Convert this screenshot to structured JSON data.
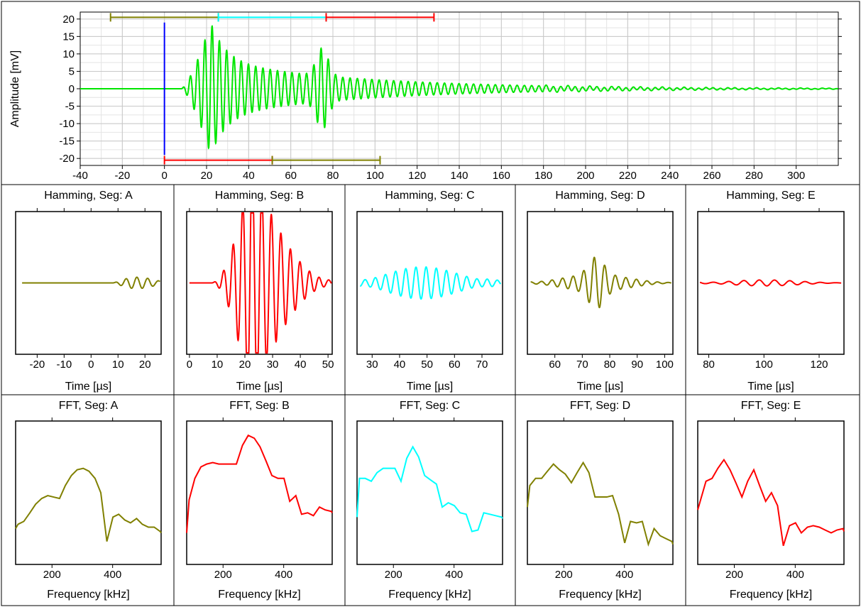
{
  "colors": {
    "signal": "#00e600",
    "olive": "#808000",
    "red": "#ff0000",
    "cyan": "#00ffff",
    "blue": "#0000ff",
    "frame": "#000000",
    "grid": "#c8c8c8"
  },
  "chart_data": [
    {
      "id": "main",
      "type": "line",
      "title": "",
      "xlabel": "",
      "ylabel": "Amplitude [mV]",
      "xlim": [
        -40,
        320
      ],
      "ylim": [
        -22,
        22
      ],
      "grid": true,
      "x_ticks": [
        -40,
        -20,
        0,
        20,
        40,
        60,
        80,
        100,
        120,
        140,
        160,
        180,
        200,
        220,
        240,
        260,
        280,
        300
      ],
      "y_ticks": [
        20,
        15,
        10,
        5,
        0,
        -5,
        -10,
        -15,
        -20
      ],
      "series": [
        {
          "color": "signal",
          "waveform": {
            "onset_us": 8,
            "envelope_peak_us": 22,
            "peak_amplitude_mV": 19,
            "carrier_freq_khz": 290,
            "extra_burst_us": 75,
            "extra_burst_mV": 8
          }
        }
      ],
      "markers": {
        "trigger": {
          "x": 0,
          "y_top": 19,
          "y_bottom": -19,
          "color": "blue"
        },
        "segments": [
          {
            "name": "A",
            "x_start": -25.6,
            "x_end": 25.6,
            "position": "top",
            "color": "olive"
          },
          {
            "name": "B",
            "x_start": 0,
            "x_end": 51.2,
            "position": "bottom",
            "color": "red"
          },
          {
            "name": "C",
            "x_start": 25.6,
            "x_end": 76.8,
            "position": "top",
            "color": "cyan"
          },
          {
            "name": "D",
            "x_start": 51.2,
            "x_end": 102.4,
            "position": "bottom",
            "color": "olive"
          },
          {
            "name": "E",
            "x_start": 76.8,
            "x_end": 128,
            "position": "top",
            "color": "red"
          }
        ]
      }
    },
    {
      "id": "ham-a",
      "type": "line",
      "title": "Hamming, Seg: A",
      "xlabel": "Time [µs]",
      "color": "olive",
      "xlim": [
        -28,
        26
      ],
      "x_ticks": [
        -20,
        -10,
        0,
        10,
        20
      ],
      "waveform": {
        "start": -25.6,
        "end": 25.6,
        "onset_us": 7,
        "relative_peak": 0.26,
        "carrier_freq_khz": 250
      }
    },
    {
      "id": "ham-b",
      "type": "line",
      "title": "Hamming, Seg: B",
      "xlabel": "Time [µs]",
      "color": "red",
      "xlim": [
        -1,
        51.5
      ],
      "x_ticks": [
        0,
        10,
        20,
        30,
        40,
        50
      ],
      "waveform": {
        "start": 0,
        "end": 51.2,
        "onset_us": 8,
        "relative_peak": 0.96,
        "carrier_freq_khz": 290
      }
    },
    {
      "id": "ham-c",
      "type": "line",
      "title": "Hamming, Seg: C",
      "xlabel": "Time [µs]",
      "color": "cyan",
      "xlim": [
        24.5,
        77.5
      ],
      "x_ticks": [
        30,
        40,
        50,
        60,
        70
      ],
      "waveform": {
        "start": 25.6,
        "end": 76.8,
        "onset_us": 25.6,
        "relative_peak": 0.42,
        "carrier_freq_khz": 270
      }
    },
    {
      "id": "ham-d",
      "type": "line",
      "title": "Hamming, Seg: D",
      "xlabel": "Time [µs]",
      "color": "olive",
      "xlim": [
        50,
        103
      ],
      "x_ticks": [
        60,
        70,
        80,
        90,
        100
      ],
      "waveform": {
        "start": 51.2,
        "end": 102.4,
        "onset_us": 51.2,
        "relative_peak": 0.33,
        "carrier_freq_khz": 260
      }
    },
    {
      "id": "ham-e",
      "type": "line",
      "title": "Hamming, Seg: E",
      "xlabel": "Time [µs]",
      "color": "red",
      "xlim": [
        76,
        129
      ],
      "x_ticks": [
        80,
        100,
        120
      ],
      "waveform": {
        "start": 76.8,
        "end": 128,
        "onset_us": 76.8,
        "relative_peak": 0.17,
        "carrier_freq_khz": 180
      }
    },
    {
      "id": "fft-a",
      "type": "line",
      "title": "FFT, Seg: A",
      "xlabel": "Frequency [kHz]",
      "color": "olive",
      "xlim": [
        80,
        560
      ],
      "x_ticks": [
        200,
        400
      ],
      "x": [
        68,
        88,
        107,
        127,
        146,
        166,
        186,
        205,
        225,
        244,
        264,
        283,
        303,
        322,
        342,
        361,
        381,
        401,
        420,
        440,
        459,
        479,
        498,
        518,
        537,
        557,
        576
      ],
      "y": [
        0.25,
        0.28,
        0.3,
        0.36,
        0.42,
        0.46,
        0.48,
        0.47,
        0.46,
        0.55,
        0.62,
        0.66,
        0.67,
        0.65,
        0.6,
        0.5,
        0.16,
        0.33,
        0.35,
        0.31,
        0.29,
        0.32,
        0.28,
        0.26,
        0.26,
        0.23,
        0.22
      ]
    },
    {
      "id": "fft-b",
      "type": "line",
      "title": "FFT, Seg: B",
      "xlabel": "Frequency [kHz]",
      "color": "red",
      "xlim": [
        80,
        560
      ],
      "x_ticks": [
        200,
        400
      ],
      "x": [
        68,
        88,
        107,
        127,
        146,
        166,
        186,
        205,
        225,
        244,
        264,
        283,
        303,
        322,
        342,
        361,
        381,
        401,
        420,
        440,
        459,
        479,
        498,
        518,
        537,
        557,
        576
      ],
      "y": [
        0.22,
        0.45,
        0.6,
        0.68,
        0.7,
        0.71,
        0.7,
        0.7,
        0.7,
        0.7,
        0.83,
        0.9,
        0.88,
        0.82,
        0.72,
        0.62,
        0.6,
        0.6,
        0.44,
        0.48,
        0.35,
        0.36,
        0.34,
        0.4,
        0.38,
        0.37,
        0.36
      ]
    },
    {
      "id": "fft-c",
      "type": "line",
      "title": "FFT, Seg: C",
      "xlabel": "Frequency [kHz]",
      "color": "cyan",
      "xlim": [
        80,
        560
      ],
      "x_ticks": [
        200,
        400
      ],
      "x": [
        68,
        88,
        107,
        127,
        146,
        166,
        186,
        205,
        225,
        244,
        264,
        283,
        303,
        322,
        342,
        361,
        381,
        401,
        420,
        440,
        459,
        479,
        498,
        518,
        537,
        557,
        576
      ],
      "y": [
        0.33,
        0.6,
        0.6,
        0.58,
        0.64,
        0.67,
        0.67,
        0.67,
        0.58,
        0.74,
        0.82,
        0.75,
        0.62,
        0.59,
        0.56,
        0.4,
        0.43,
        0.41,
        0.36,
        0.35,
        0.23,
        0.24,
        0.36,
        0.35,
        0.34,
        0.33,
        0.32
      ]
    },
    {
      "id": "fft-d",
      "type": "line",
      "title": "FFT, Seg: D",
      "xlabel": "Frequency [kHz]",
      "color": "olive",
      "xlim": [
        80,
        560
      ],
      "x_ticks": [
        200,
        400
      ],
      "x": [
        68,
        88,
        107,
        127,
        146,
        166,
        186,
        205,
        225,
        244,
        264,
        283,
        303,
        322,
        342,
        361,
        381,
        401,
        420,
        440,
        459,
        479,
        498,
        518,
        537,
        557,
        576
      ],
      "y": [
        0.4,
        0.55,
        0.6,
        0.6,
        0.65,
        0.7,
        0.66,
        0.63,
        0.57,
        0.64,
        0.71,
        0.64,
        0.47,
        0.47,
        0.47,
        0.48,
        0.35,
        0.15,
        0.3,
        0.29,
        0.3,
        0.14,
        0.25,
        0.2,
        0.18,
        0.16,
        0.14
      ]
    },
    {
      "id": "fft-e",
      "type": "line",
      "title": "FFT, Seg: E",
      "xlabel": "Frequency [kHz]",
      "color": "red",
      "xlim": [
        80,
        560
      ],
      "x_ticks": [
        200,
        400
      ],
      "x": [
        68,
        88,
        107,
        127,
        146,
        166,
        186,
        205,
        225,
        244,
        264,
        283,
        303,
        322,
        342,
        361,
        381,
        401,
        420,
        440,
        459,
        479,
        498,
        518,
        537,
        557,
        576
      ],
      "y": [
        0.38,
        0.44,
        0.58,
        0.6,
        0.67,
        0.73,
        0.66,
        0.57,
        0.47,
        0.58,
        0.66,
        0.55,
        0.44,
        0.5,
        0.41,
        0.13,
        0.27,
        0.29,
        0.22,
        0.26,
        0.27,
        0.26,
        0.24,
        0.22,
        0.24,
        0.25,
        0.23
      ]
    }
  ]
}
